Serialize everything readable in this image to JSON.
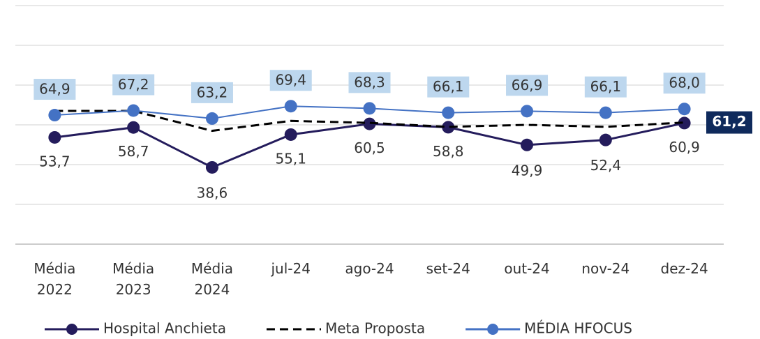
{
  "chart_data": {
    "type": "line",
    "categories": [
      "Média 2022",
      "Média 2023",
      "Média 2024",
      "jul-24",
      "ago-24",
      "set-24",
      "out-24",
      "nov-24",
      "dez-24"
    ],
    "ylim": [
      0,
      120
    ],
    "yticks": [
      0,
      20,
      40,
      60,
      80,
      100,
      120
    ],
    "grid": true,
    "legend": "bottom",
    "series": [
      {
        "name": "Hospital Anchieta",
        "color": "#241c5c",
        "dashed": false,
        "markers": true,
        "label_position": "below",
        "values": [
          53.7,
          58.7,
          38.6,
          55.1,
          60.5,
          58.8,
          49.9,
          52.4,
          60.9
        ],
        "value_labels": [
          "53,7",
          "58,7",
          "38,6",
          "55,1",
          "60,5",
          "58,8",
          "49,9",
          "52,4",
          "60,9"
        ]
      },
      {
        "name": "Meta Proposta",
        "color": "#000000",
        "dashed": true,
        "markers": false,
        "label_position": "badge",
        "values": [
          67,
          67,
          57,
          62,
          61,
          59,
          60,
          59,
          61.2
        ],
        "value_labels": [
          null,
          null,
          null,
          null,
          null,
          null,
          null,
          null,
          "61,2"
        ]
      },
      {
        "name": "MÉDIA HFOCUS",
        "color": "#4472c4",
        "dashed": false,
        "markers": true,
        "label_position": "above",
        "values": [
          64.9,
          67.2,
          63.2,
          69.4,
          68.3,
          66.1,
          66.9,
          66.1,
          68.0
        ],
        "value_labels": [
          "64,9",
          "67,2",
          "63,2",
          "69,4",
          "68,3",
          "66,1",
          "66,9",
          "66,1",
          "68,0"
        ]
      }
    ]
  }
}
